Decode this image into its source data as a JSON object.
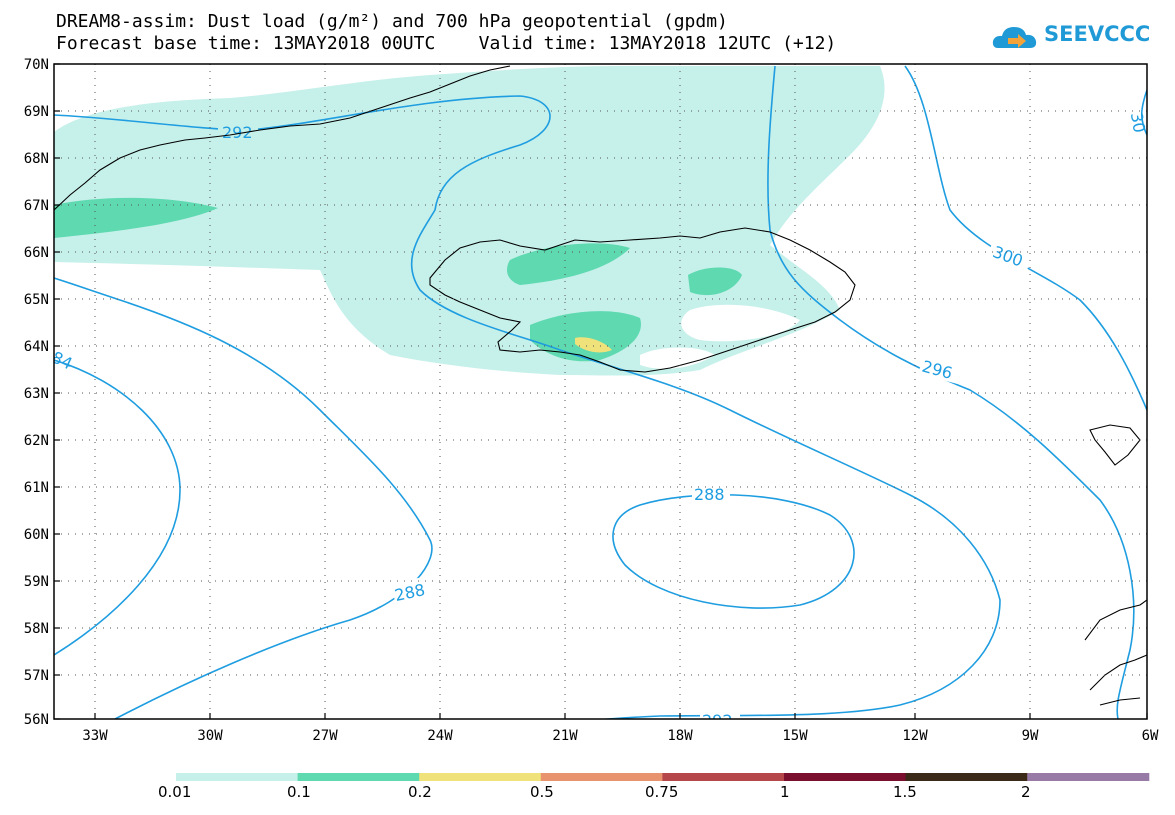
{
  "header": {
    "title_line1": "DREAM8-assim: Dust load (g/m²) and 700 hPa geopotential (gpdm)",
    "title_line2": "Forecast base time: 13MAY2018 00UTC    Valid time: 13MAY2018 12UTC (+12)"
  },
  "logo": {
    "text": "SEEVCCC",
    "icon": "cloud-arrow-icon"
  },
  "map": {
    "lat_labels": [
      "70N",
      "69N",
      "68N",
      "67N",
      "66N",
      "65N",
      "64N",
      "63N",
      "62N",
      "61N",
      "60N",
      "59N",
      "58N",
      "57N",
      "56N"
    ],
    "lon_labels": [
      "33W",
      "30W",
      "27W",
      "24W",
      "21W",
      "18W",
      "15W",
      "12W",
      "9W",
      "6W"
    ],
    "contour_labels": [
      "292",
      "300",
      "296",
      "288",
      "288",
      "292",
      "84",
      "30"
    ]
  },
  "colorbar": {
    "colors": [
      "#c6f0ea",
      "#5ed9b0",
      "#f0e27a",
      "#e8936e",
      "#b5474a",
      "#7a0f2e",
      "#3b2a17",
      "#977aa5"
    ],
    "labels": [
      "0.01",
      "0.1",
      "0.2",
      "0.5",
      "0.75",
      "1",
      "1.5",
      "2"
    ]
  }
}
